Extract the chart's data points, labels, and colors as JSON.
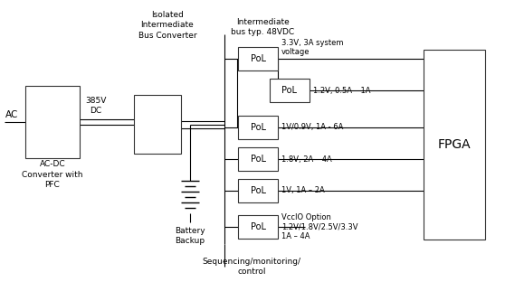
{
  "bg_color": "#ffffff",
  "line_color": "#333333",
  "text_color": "#333333",
  "font_size": 7,
  "ac_label": "AC",
  "converter1_label": "AC-DC\nConverter with\nPFC",
  "converter1_voltage": "385V\nDC",
  "isolated_label": "Isolated\nIntermediate\nBus Converter",
  "battery_label": "Battery\nBackup",
  "intermediate_label": "Intermediate\nbus typ. 48VDC",
  "sequencing_label": "Sequencing/monitoring/\ncontrol",
  "fpga_label": "FPGA",
  "pol_label": "PoL",
  "pol_outputs": [
    "3.3V, 3A system\nvoltage",
    "1.2V, 0.5A – 1A",
    "1V/0.9V, 1A - 6A",
    "1.8V, 2A – 4A",
    "1V, 1A – 2A",
    "VccIO Option\n1.2V/1.8V/2.5V/3.3V\n1A – 4A"
  ]
}
